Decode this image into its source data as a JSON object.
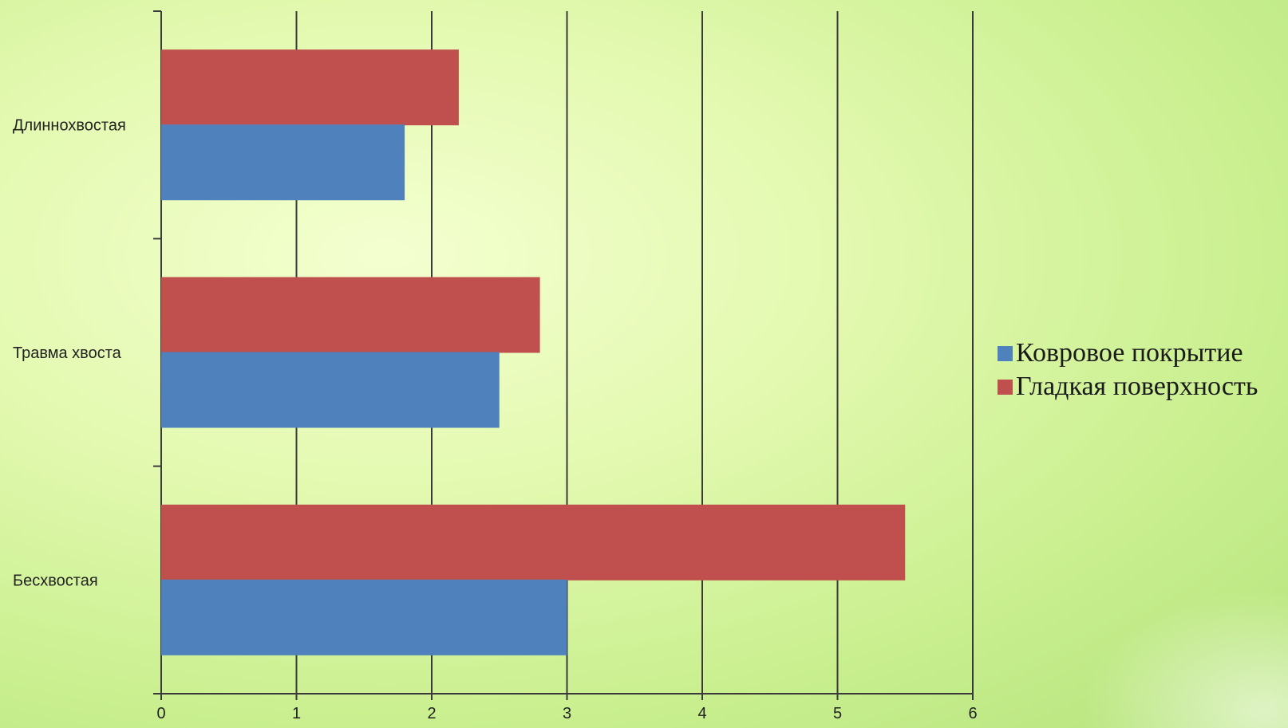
{
  "chart_data": {
    "type": "bar",
    "orientation": "horizontal",
    "categories": [
      "Длиннохвостая",
      "Травма хвоста",
      "Бесхвостая"
    ],
    "series": [
      {
        "name": "Ковровое покрытие",
        "color": "#4f81bd",
        "values": [
          1.8,
          2.5,
          3.0
        ]
      },
      {
        "name": "Гладкая поверхность",
        "color": "#c0504d",
        "values": [
          2.2,
          2.8,
          5.5
        ]
      }
    ],
    "xlim": [
      0,
      6
    ],
    "xticks": [
      "0",
      "1",
      "2",
      "3",
      "4",
      "5",
      "6"
    ],
    "grid": true,
    "legend_position": "right"
  }
}
